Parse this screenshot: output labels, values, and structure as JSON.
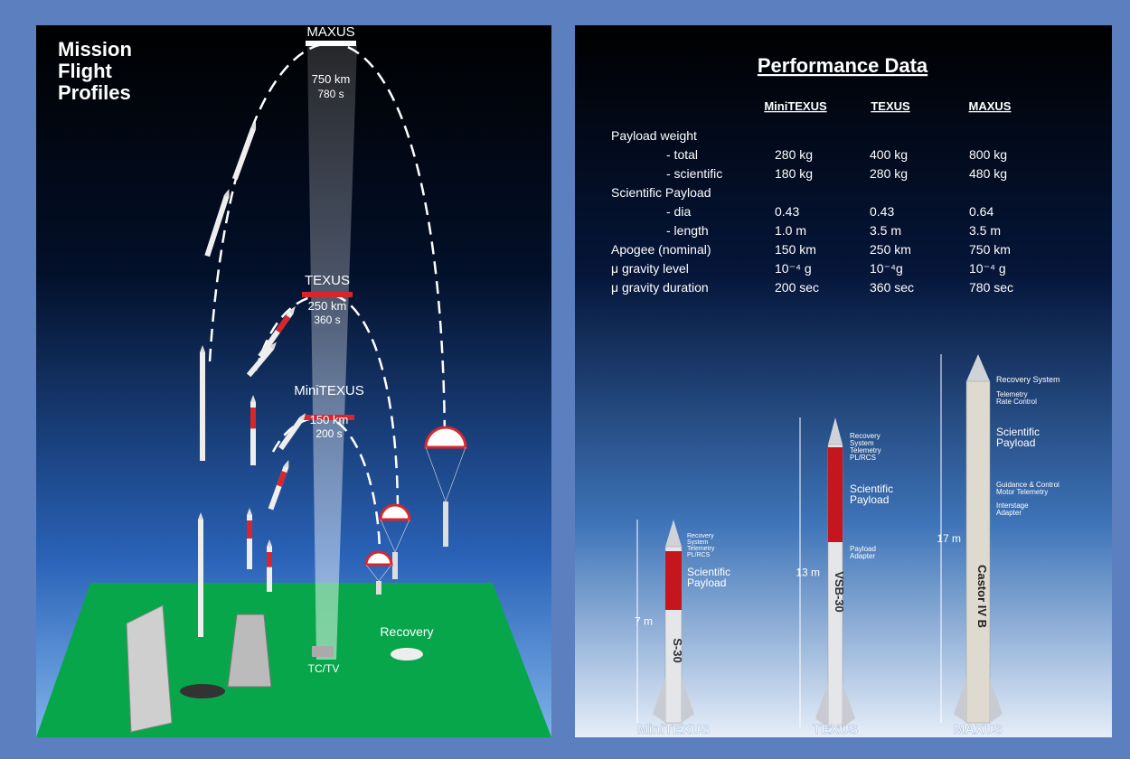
{
  "left": {
    "title": [
      "Mission",
      "Flight",
      "Profiles"
    ],
    "profiles": [
      {
        "name": "MAXUS",
        "apogee": "750 km",
        "duration": "780 s"
      },
      {
        "name": "TEXUS",
        "apogee": "250 km",
        "duration": "360 s"
      },
      {
        "name": "MiniTEXUS",
        "apogee": "150 km",
        "duration": "200 s"
      }
    ],
    "recovery": "Recovery",
    "station": "TC/TV"
  },
  "right": {
    "title": "Performance Data",
    "columns": [
      "MiniTEXUS",
      "TEXUS",
      "MAXUS"
    ],
    "rows": [
      {
        "label": "Payload weight",
        "sub": [
          {
            "label": "- total",
            "values": [
              "280 kg",
              "400 kg",
              "800 kg"
            ]
          },
          {
            "label": "- scientific",
            "values": [
              "180 kg",
              "280 kg",
              "480 kg"
            ]
          }
        ]
      },
      {
        "label": "Scientific Payload",
        "sub": [
          {
            "label": "- dia",
            "values": [
              "0.43",
              "0.43",
              "0.64"
            ]
          },
          {
            "label": "- length",
            "values": [
              "1.0 m",
              "3.5 m",
              "3.5 m"
            ]
          }
        ]
      },
      {
        "label": "Apogee (nominal)",
        "values": [
          "150 km",
          "250 km",
          "750 km"
        ]
      },
      {
        "label": "μ gravity level",
        "values": [
          "10⁻⁴ g",
          "10⁻⁴g",
          "10⁻⁴ g"
        ]
      },
      {
        "label": "μ gravity duration",
        "values": [
          "200 sec",
          "360 sec",
          "780 sec"
        ]
      }
    ],
    "rockets": [
      {
        "name": "MiniTEXUS",
        "motor": "S-30",
        "height": "7 m",
        "parts": [
          [
            "Recovery",
            "System",
            "Telemetry",
            "PL/RCS"
          ],
          [
            "Scientific",
            "Payload"
          ]
        ]
      },
      {
        "name": "TEXUS",
        "motor": "VSB-30",
        "height": "13 m",
        "parts": [
          [
            "Recovery",
            "System",
            "Telemetry",
            "PL/RCS"
          ],
          [
            "Scientific",
            "Payload"
          ],
          [
            "Payload",
            "Adapter"
          ]
        ]
      },
      {
        "name": "MAXUS",
        "motor": "Castor IV B",
        "height": "17 m",
        "parts": [
          [
            "Recovery System"
          ],
          [
            "Telemetry",
            "Rate Control"
          ],
          [
            "Scientific",
            "Payload"
          ],
          [
            "Guidance & Control",
            "Motor Telemetry"
          ],
          [
            "Interstage",
            "Adapter"
          ]
        ]
      }
    ]
  }
}
